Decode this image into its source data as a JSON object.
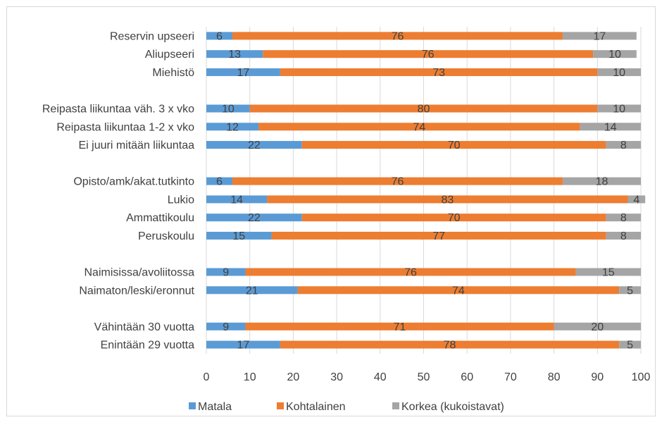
{
  "chart_data": {
    "type": "bar",
    "orientation": "horizontal",
    "stacked": true,
    "title": "",
    "xlabel": "",
    "ylabel": "",
    "xlim": [
      0,
      100
    ],
    "xticks": [
      "0",
      "10",
      "20",
      "30",
      "40",
      "50",
      "60",
      "70",
      "80",
      "90",
      "100"
    ],
    "grid": true,
    "legend_position": "bottom",
    "colors": [
      "#5B9BD5",
      "#ED7D31",
      "#A5A5A5"
    ],
    "categories": [
      "Reservin upseeri",
      "Aliupseeri",
      "Miehistö",
      "",
      "Reipasta liikuntaa väh. 3 x vko",
      "Reipasta liikuntaa 1-2 x vko",
      "Ei juuri mitään liikuntaa",
      "",
      "Opisto/amk/akat.tutkinto",
      "Lukio",
      "Ammattikoulu",
      "Peruskoulu",
      "",
      "Naimisissa/avoliitossa",
      "Naimaton/leski/eronnut",
      "",
      "Vähintään 30 vuotta",
      "Enintään 29 vuotta"
    ],
    "series": [
      {
        "name": "Matala",
        "values": [
          6,
          13,
          17,
          null,
          10,
          12,
          22,
          null,
          6,
          14,
          22,
          15,
          null,
          9,
          21,
          null,
          9,
          17
        ]
      },
      {
        "name": "Kohtalainen",
        "values": [
          76,
          76,
          73,
          null,
          80,
          74,
          70,
          null,
          76,
          83,
          70,
          77,
          null,
          76,
          74,
          null,
          71,
          78
        ]
      },
      {
        "name": "Korkea (kukoistavat)",
        "values": [
          17,
          10,
          10,
          null,
          10,
          14,
          8,
          null,
          18,
          4,
          8,
          8,
          null,
          15,
          5,
          null,
          20,
          5
        ]
      }
    ]
  }
}
